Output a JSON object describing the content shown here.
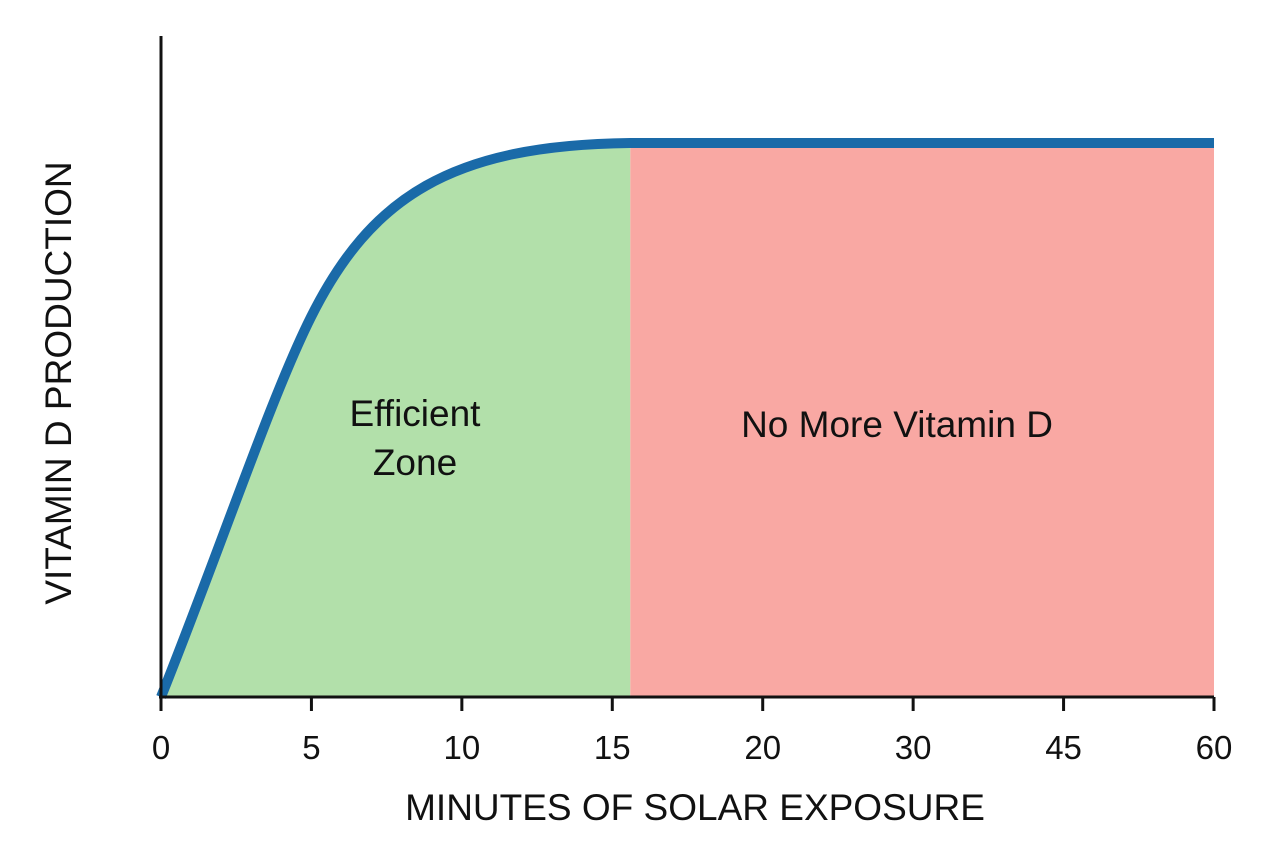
{
  "chart_data": {
    "type": "area",
    "title": "",
    "xlabel": "MINUTES OF SOLAR EXPOSURE",
    "ylabel": "VITAMIN D PRODUCTION",
    "x_tick_labels": [
      "0",
      "5",
      "10",
      "15",
      "20",
      "30",
      "45",
      "60"
    ],
    "y_tick_labels": [],
    "plateau_start_x": "15",
    "regions": [
      {
        "name": "efficient",
        "label_lines": [
          "Efficient",
          "Zone"
        ],
        "color": "#b2e0aa"
      },
      {
        "name": "no-more",
        "label_lines": [
          "No More Vitamin D"
        ],
        "color": "#f9a8a3"
      }
    ],
    "curve": {
      "color": "#1a6aa8",
      "points": [
        {
          "x": "0",
          "y": 0
        },
        {
          "x": "5",
          "y": 0.55
        },
        {
          "x": "10",
          "y": 0.93
        },
        {
          "x": "15",
          "y": 1.0
        },
        {
          "x": "20",
          "y": 1.0
        },
        {
          "x": "30",
          "y": 1.0
        },
        {
          "x": "45",
          "y": 1.0
        },
        {
          "x": "60",
          "y": 1.0
        }
      ]
    },
    "grid": false,
    "legend": "none"
  }
}
